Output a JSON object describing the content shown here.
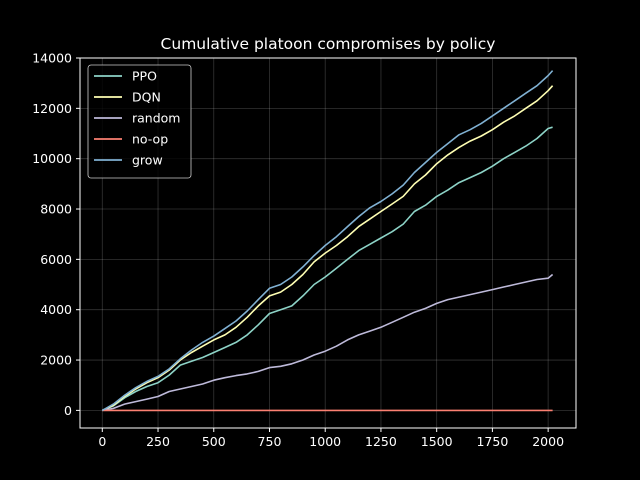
{
  "chart_data": {
    "type": "line",
    "title": "Cumulative platoon compromises by policy",
    "xlabel": "",
    "ylabel": "",
    "xlim": [
      -100,
      2125
    ],
    "ylim": [
      -700,
      14000
    ],
    "xticks": [
      0,
      250,
      500,
      750,
      1000,
      1250,
      1500,
      1750,
      2000
    ],
    "yticks": [
      0,
      2000,
      4000,
      6000,
      8000,
      10000,
      12000,
      14000
    ],
    "grid": true,
    "legend_position": "top-left",
    "series": [
      {
        "name": "PPO",
        "color": "#8dd3c7",
        "points": [
          [
            0,
            0
          ],
          [
            50,
            180
          ],
          [
            100,
            500
          ],
          [
            150,
            750
          ],
          [
            200,
            950
          ],
          [
            250,
            1100
          ],
          [
            300,
            1400
          ],
          [
            350,
            1800
          ],
          [
            400,
            1950
          ],
          [
            450,
            2100
          ],
          [
            500,
            2300
          ],
          [
            550,
            2500
          ],
          [
            600,
            2700
          ],
          [
            650,
            3000
          ],
          [
            700,
            3400
          ],
          [
            750,
            3850
          ],
          [
            800,
            4000
          ],
          [
            850,
            4150
          ],
          [
            900,
            4550
          ],
          [
            950,
            5000
          ],
          [
            1000,
            5300
          ],
          [
            1050,
            5650
          ],
          [
            1100,
            6000
          ],
          [
            1150,
            6350
          ],
          [
            1200,
            6600
          ],
          [
            1250,
            6850
          ],
          [
            1300,
            7100
          ],
          [
            1350,
            7400
          ],
          [
            1400,
            7900
          ],
          [
            1450,
            8150
          ],
          [
            1500,
            8500
          ],
          [
            1550,
            8750
          ],
          [
            1600,
            9050
          ],
          [
            1650,
            9250
          ],
          [
            1700,
            9450
          ],
          [
            1750,
            9700
          ],
          [
            1800,
            10000
          ],
          [
            1850,
            10250
          ],
          [
            1900,
            10500
          ],
          [
            1950,
            10800
          ],
          [
            2000,
            11200
          ],
          [
            2020,
            11250
          ]
        ]
      },
      {
        "name": "DQN",
        "color": "#ffffb3",
        "points": [
          [
            0,
            0
          ],
          [
            50,
            200
          ],
          [
            100,
            550
          ],
          [
            150,
            850
          ],
          [
            200,
            1100
          ],
          [
            250,
            1300
          ],
          [
            300,
            1600
          ],
          [
            350,
            2000
          ],
          [
            400,
            2300
          ],
          [
            450,
            2550
          ],
          [
            500,
            2800
          ],
          [
            550,
            3000
          ],
          [
            600,
            3300
          ],
          [
            650,
            3700
          ],
          [
            700,
            4150
          ],
          [
            750,
            4550
          ],
          [
            800,
            4700
          ],
          [
            850,
            5000
          ],
          [
            900,
            5400
          ],
          [
            950,
            5900
          ],
          [
            1000,
            6250
          ],
          [
            1050,
            6550
          ],
          [
            1100,
            6900
          ],
          [
            1150,
            7300
          ],
          [
            1200,
            7600
          ],
          [
            1250,
            7900
          ],
          [
            1300,
            8200
          ],
          [
            1350,
            8500
          ],
          [
            1400,
            9000
          ],
          [
            1450,
            9350
          ],
          [
            1500,
            9800
          ],
          [
            1550,
            10150
          ],
          [
            1600,
            10450
          ],
          [
            1650,
            10700
          ],
          [
            1700,
            10900
          ],
          [
            1750,
            11150
          ],
          [
            1800,
            11450
          ],
          [
            1850,
            11700
          ],
          [
            1900,
            12000
          ],
          [
            1950,
            12300
          ],
          [
            2000,
            12700
          ],
          [
            2020,
            12900
          ]
        ]
      },
      {
        "name": "random",
        "color": "#bebada",
        "points": [
          [
            0,
            0
          ],
          [
            50,
            80
          ],
          [
            100,
            250
          ],
          [
            150,
            350
          ],
          [
            200,
            450
          ],
          [
            250,
            550
          ],
          [
            300,
            750
          ],
          [
            350,
            850
          ],
          [
            400,
            950
          ],
          [
            450,
            1050
          ],
          [
            500,
            1200
          ],
          [
            550,
            1300
          ],
          [
            600,
            1380
          ],
          [
            650,
            1450
          ],
          [
            700,
            1550
          ],
          [
            750,
            1700
          ],
          [
            800,
            1750
          ],
          [
            850,
            1850
          ],
          [
            900,
            2000
          ],
          [
            950,
            2200
          ],
          [
            1000,
            2350
          ],
          [
            1050,
            2550
          ],
          [
            1100,
            2800
          ],
          [
            1150,
            3000
          ],
          [
            1200,
            3150
          ],
          [
            1250,
            3300
          ],
          [
            1300,
            3500
          ],
          [
            1350,
            3700
          ],
          [
            1400,
            3900
          ],
          [
            1450,
            4050
          ],
          [
            1500,
            4250
          ],
          [
            1550,
            4400
          ],
          [
            1600,
            4500
          ],
          [
            1650,
            4600
          ],
          [
            1700,
            4700
          ],
          [
            1750,
            4800
          ],
          [
            1800,
            4900
          ],
          [
            1850,
            5000
          ],
          [
            1900,
            5100
          ],
          [
            1950,
            5200
          ],
          [
            2000,
            5250
          ],
          [
            2020,
            5400
          ]
        ]
      },
      {
        "name": "no-op",
        "color": "#fb8072",
        "points": [
          [
            0,
            0
          ],
          [
            2020,
            0
          ]
        ]
      },
      {
        "name": "grow",
        "color": "#80b1d3",
        "points": [
          [
            0,
            0
          ],
          [
            50,
            250
          ],
          [
            100,
            600
          ],
          [
            150,
            900
          ],
          [
            200,
            1150
          ],
          [
            250,
            1350
          ],
          [
            300,
            1650
          ],
          [
            350,
            2050
          ],
          [
            400,
            2400
          ],
          [
            450,
            2700
          ],
          [
            500,
            2950
          ],
          [
            550,
            3250
          ],
          [
            600,
            3550
          ],
          [
            650,
            3950
          ],
          [
            700,
            4400
          ],
          [
            750,
            4850
          ],
          [
            800,
            5000
          ],
          [
            850,
            5300
          ],
          [
            900,
            5700
          ],
          [
            950,
            6150
          ],
          [
            1000,
            6550
          ],
          [
            1050,
            6900
          ],
          [
            1100,
            7300
          ],
          [
            1150,
            7700
          ],
          [
            1200,
            8050
          ],
          [
            1250,
            8300
          ],
          [
            1300,
            8600
          ],
          [
            1350,
            8950
          ],
          [
            1400,
            9450
          ],
          [
            1450,
            9850
          ],
          [
            1500,
            10250
          ],
          [
            1550,
            10600
          ],
          [
            1600,
            10950
          ],
          [
            1650,
            11150
          ],
          [
            1700,
            11400
          ],
          [
            1750,
            11700
          ],
          [
            1800,
            12000
          ],
          [
            1850,
            12300
          ],
          [
            1900,
            12600
          ],
          [
            1950,
            12900
          ],
          [
            2000,
            13300
          ],
          [
            2020,
            13500
          ]
        ]
      }
    ]
  }
}
